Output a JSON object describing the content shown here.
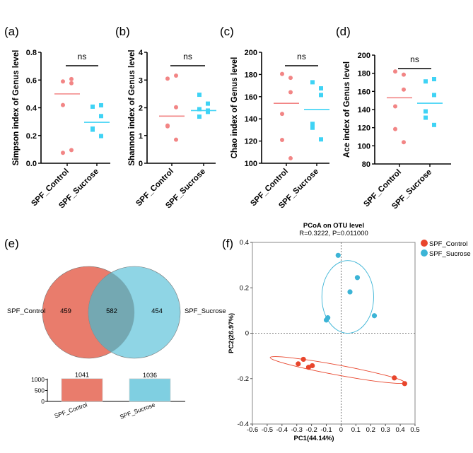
{
  "colors": {
    "control_dot": "#f28585",
    "sucrose_dot": "#3fd3f5",
    "venn_control": "#e97c6c",
    "venn_sucrose": "#7fcfe1",
    "pcoa_control": "#e8452c",
    "pcoa_sucrose": "#3cb4d6"
  },
  "chart_data": [
    {
      "panel": "(a)",
      "type": "scatter",
      "ylabel": "Simpson index of Genus level",
      "categories": [
        "SPF_Control",
        "SPF_Sucrose"
      ],
      "ylim": [
        0,
        0.8
      ],
      "yticks": [
        "0.0",
        "0.2",
        "0.4",
        "0.6",
        "0.8"
      ],
      "significance": "ns",
      "series": [
        {
          "values": [
            0.59,
            0.607,
            0.577,
            0.42,
            0.075,
            0.095
          ],
          "mean": 0.5
        },
        {
          "values": [
            0.408,
            0.418,
            0.34,
            0.25,
            0.242,
            0.196
          ],
          "mean": 0.295
        }
      ]
    },
    {
      "panel": "(b)",
      "type": "scatter",
      "ylabel": "Shannon index of Genus level",
      "categories": [
        "SPF_Control",
        "SPF_Sucrose"
      ],
      "ylim": [
        0,
        4
      ],
      "yticks": [
        "0",
        "1",
        "2",
        "3",
        "4"
      ],
      "significance": "ns",
      "series": [
        {
          "values": [
            3.05,
            3.16,
            2.02,
            1.36,
            1.33,
            0.85
          ],
          "mean": 1.7
        },
        {
          "values": [
            2.47,
            2.15,
            1.85,
            1.95,
            1.68,
            1.9
          ],
          "mean": 1.9
        }
      ]
    },
    {
      "panel": "(c)",
      "type": "scatter",
      "ylabel": "Chao index of Genus level",
      "categories": [
        "SPF_Control",
        "SPF_Sucrose"
      ],
      "ylim": [
        100,
        200
      ],
      "yticks": [
        "100",
        "120",
        "140",
        "160",
        "180",
        "200"
      ],
      "significance": "ns",
      "series": [
        {
          "values": [
            180.5,
            177,
            164,
            144.5,
            121,
            104.5
          ],
          "mean": 154
        },
        {
          "values": [
            173,
            167.5,
            161.5,
            135.5,
            132,
            121.5
          ],
          "mean": 148.5
        }
      ]
    },
    {
      "panel": "(d)",
      "type": "scatter",
      "ylabel": "Ace index of Genus level",
      "categories": [
        "SPF_Control",
        "SPF_Sucrose"
      ],
      "ylim": [
        80,
        200
      ],
      "yticks": [
        "80",
        "100",
        "120",
        "140",
        "160",
        "180",
        "200"
      ],
      "significance": "ns",
      "series": [
        {
          "values": [
            182,
            178.5,
            162,
            143.5,
            118.5,
            104
          ],
          "mean": 153
        },
        {
          "values": [
            171,
            173.5,
            156,
            138,
            131,
            123
          ],
          "mean": 147
        }
      ]
    },
    {
      "panel": "(e)",
      "type": "venn",
      "sets": [
        "SPF_Control",
        "SPF_Sucrose"
      ],
      "only_control": "459",
      "shared": "582",
      "only_sucrose": "454",
      "bar": {
        "type": "bar",
        "categories": [
          "SPF_Control",
          "SPF_Sucrose"
        ],
        "values": [
          1041,
          1036
        ],
        "labels": [
          "1041",
          "1036"
        ],
        "ylim": [
          0,
          1041
        ],
        "yticks": [
          "0",
          "500",
          "1000"
        ]
      }
    },
    {
      "panel": "(f)",
      "type": "scatter",
      "title": "PCoA on OTU level",
      "subtitle": "R=0.3222, P=0.011000",
      "xlabel": "PC1(44.14%)",
      "ylabel": "PC2(26.97%)",
      "xlim": [
        -0.6,
        0.5
      ],
      "ylim": [
        -0.4,
        0.4
      ],
      "xticks": [
        "-0.6",
        "-0.5",
        "-0.4",
        "-0.3",
        "-0.2",
        "-0.1",
        "0",
        "0.1",
        "0.2",
        "0.3",
        "0.4",
        "0.5"
      ],
      "yticks": [
        "-0.4",
        "-0.2",
        "0",
        "0.2",
        "0.4"
      ],
      "legend": "top-right",
      "series": [
        {
          "name": "SPF_Control",
          "points": [
            [
              -0.29,
              -0.135
            ],
            [
              -0.255,
              -0.115
            ],
            [
              -0.22,
              -0.15
            ],
            [
              -0.195,
              -0.143
            ],
            [
              0.36,
              -0.197
            ],
            [
              0.43,
              -0.222
            ]
          ],
          "ellipse": {
            "center": [
              -0.025,
              -0.162
            ],
            "ends": [
              [
                -0.48,
                -0.107
              ],
              [
                0.43,
                -0.217
              ]
            ],
            "minor_half": 0.022
          }
        },
        {
          "name": "SPF_Sucrose",
          "points": [
            [
              -0.02,
              0.343
            ],
            [
              0.11,
              0.245
            ],
            [
              0.06,
              0.182
            ],
            [
              -0.1,
              0.058
            ],
            [
              -0.09,
              0.068
            ],
            [
              0.225,
              0.077
            ]
          ],
          "ellipse": {
            "center": [
              0.045,
              0.16
            ],
            "rx": 0.175,
            "ry": 0.16
          }
        }
      ]
    }
  ]
}
